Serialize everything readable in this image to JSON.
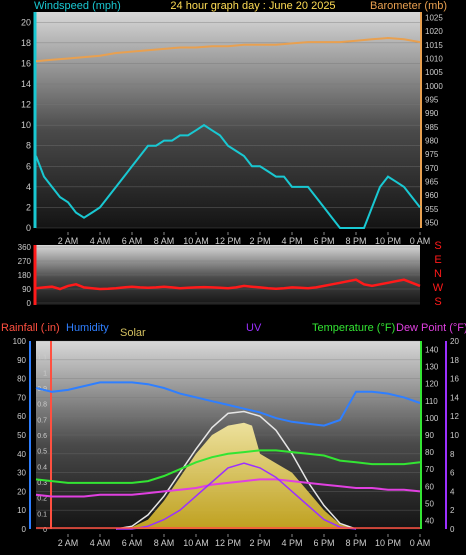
{
  "header": {
    "left_label": "Windspeed (mph)",
    "title": "24 hour graph day : June 20 2025",
    "right_label": "Barometer (mb)"
  },
  "colors": {
    "windspeed": "#19c8d2",
    "barometer": "#e8a050",
    "wind_direction": "#ff1a1a",
    "rainfall": "#ff5040",
    "humidity": "#2f7fff",
    "solar": "#e8d870",
    "uv": "#9b30ff",
    "temperature": "#33e533",
    "dew_point": "#e040e0",
    "tick_text": "#cccccc"
  },
  "chart_data": [
    {
      "type": "line",
      "title": "24 hour graph day : June 20 2025",
      "x_ticks": [
        "2 AM",
        "4 AM",
        "6 AM",
        "8 AM",
        "10 AM",
        "12 PM",
        "2 PM",
        "4 PM",
        "6 PM",
        "8 PM",
        "10 PM",
        "0 AM"
      ],
      "left_axis": {
        "label": "Windspeed (mph)",
        "ticks": [
          0,
          2,
          4,
          6,
          8,
          10,
          12,
          14,
          16,
          18,
          20
        ],
        "range": [
          0,
          21
        ]
      },
      "right_axis": {
        "label": "Barometer (mb)",
        "ticks": [
          950,
          955,
          960,
          965,
          970,
          975,
          980,
          985,
          990,
          995,
          1000,
          1005,
          1010,
          1015,
          1020,
          1025
        ],
        "range": [
          948,
          1027
        ]
      },
      "series": [
        {
          "name": "Windspeed (mph)",
          "axis": "left",
          "x": [
            0,
            0.5,
            1,
            1.5,
            2,
            2.5,
            3,
            3.5,
            4,
            4.5,
            5,
            5.5,
            6,
            6.5,
            7,
            7.5,
            8,
            8.5,
            9,
            9.5,
            10,
            10.5,
            11,
            11.5,
            12,
            12.5,
            13,
            13.5,
            14,
            14.5,
            15,
            15.5,
            16,
            16.5,
            17,
            17.5,
            18,
            18.5,
            19,
            19.5,
            20,
            20.5,
            21,
            21.5,
            22,
            22.5,
            23,
            23.5,
            24
          ],
          "values": [
            7,
            5,
            4,
            3,
            2.5,
            1.5,
            1,
            1.5,
            2,
            3,
            4,
            5,
            6,
            7,
            8,
            8,
            8.5,
            8.5,
            9,
            9,
            9.5,
            10,
            9.5,
            9,
            8,
            7.5,
            7,
            6,
            6,
            5.5,
            5,
            5,
            4,
            4,
            4,
            3,
            2,
            1,
            0,
            0,
            0,
            0,
            2,
            4,
            5,
            4.5,
            4,
            3,
            2
          ]
        },
        {
          "name": "Barometer (mb)",
          "axis": "right",
          "x": [
            0,
            1,
            2,
            3,
            4,
            5,
            6,
            7,
            8,
            9,
            10,
            11,
            12,
            13,
            14,
            15,
            16,
            17,
            18,
            19,
            20,
            21,
            22,
            23,
            24
          ],
          "values": [
            1009,
            1009.5,
            1010,
            1010.5,
            1011,
            1012,
            1012.5,
            1013,
            1013.5,
            1014,
            1014,
            1014.5,
            1014.5,
            1015,
            1015,
            1015,
            1015.5,
            1016,
            1016,
            1016,
            1016.5,
            1017,
            1017.5,
            1017,
            1016
          ]
        }
      ]
    },
    {
      "type": "scatter",
      "x_ticks": [
        "2 AM",
        "4 AM",
        "6 AM",
        "8 AM",
        "10 AM",
        "12 PM",
        "2 PM",
        "4 PM",
        "6 PM",
        "8 PM",
        "10 PM",
        "0 AM"
      ],
      "left_axis": {
        "ticks": [
          0,
          90,
          180,
          270,
          360
        ],
        "range": [
          0,
          360
        ]
      },
      "right_labels": [
        "S",
        "E",
        "N",
        "W",
        "S"
      ],
      "series": [
        {
          "name": "Wind direction",
          "x": [
            0,
            0.5,
            1,
            1.5,
            2,
            2.5,
            3,
            3.5,
            4,
            4.5,
            5,
            5.5,
            6,
            6.5,
            7,
            7.5,
            8,
            8.5,
            9,
            9.5,
            10,
            10.5,
            11,
            11.5,
            12,
            12.5,
            13,
            13.5,
            14,
            14.5,
            15,
            15.5,
            16,
            16.5,
            17,
            17.5,
            18,
            18.5,
            19,
            19.5,
            20,
            20.5,
            21,
            21.5,
            22,
            22.5,
            23,
            23.5,
            24
          ],
          "values": [
            95,
            100,
            105,
            90,
            110,
            120,
            100,
            95,
            90,
            92,
            95,
            100,
            105,
            100,
            98,
            100,
            105,
            100,
            95,
            98,
            100,
            102,
            100,
            98,
            95,
            100,
            110,
            105,
            100,
            95,
            92,
            95,
            100,
            98,
            95,
            100,
            110,
            120,
            130,
            140,
            150,
            120,
            110,
            120,
            130,
            140,
            150,
            130,
            110
          ]
        }
      ]
    },
    {
      "type": "line",
      "x_ticks": [
        "2 AM",
        "4 AM",
        "6 AM",
        "8 AM",
        "10 AM",
        "12 PM",
        "2 PM",
        "4 PM",
        "6 PM",
        "8 PM",
        "10 PM",
        "0 AM"
      ],
      "legend": [
        "Rainfall (.in)",
        "Humidity",
        "Solar",
        "UV",
        "Temperature (°F)",
        "Dew Point (°F)"
      ],
      "axes": {
        "humidity": {
          "ticks": [
            0,
            10,
            20,
            30,
            40,
            50,
            60,
            70,
            80,
            90,
            100
          ],
          "range": [
            0,
            100
          ]
        },
        "rainfall": {
          "ticks": [
            0,
            0.1,
            0.2,
            0.3,
            0.4,
            0.5,
            0.6,
            0.7,
            0.8,
            0.9,
            1,
            1.1
          ],
          "range": [
            0,
            1.2
          ]
        },
        "temperature": {
          "ticks": [
            40,
            50,
            60,
            70,
            80,
            90,
            100,
            110,
            120,
            130,
            140
          ],
          "range": [
            35,
            145
          ]
        },
        "uv": {
          "ticks": [
            0,
            2,
            4,
            6,
            8,
            10,
            12,
            14,
            16,
            18,
            20
          ],
          "range": [
            0,
            20
          ]
        }
      },
      "series": [
        {
          "name": "Humidity",
          "axis": "humidity",
          "x": [
            0,
            1,
            2,
            3,
            4,
            5,
            6,
            7,
            8,
            9,
            10,
            11,
            12,
            13,
            14,
            15,
            16,
            17,
            18,
            19,
            20,
            21,
            22,
            23,
            24
          ],
          "values": [
            75,
            73,
            74,
            76,
            78,
            78,
            78,
            77,
            75,
            72,
            70,
            68,
            66,
            64,
            62,
            59,
            57,
            56,
            55,
            58,
            73,
            73,
            72,
            70,
            67
          ]
        },
        {
          "name": "Temperature (°F)",
          "axis": "temperature",
          "x": [
            0,
            1,
            2,
            3,
            4,
            5,
            6,
            7,
            8,
            9,
            10,
            11,
            12,
            13,
            14,
            15,
            16,
            17,
            18,
            19,
            20,
            21,
            22,
            23,
            24
          ],
          "values": [
            64,
            63,
            62,
            62,
            62,
            62,
            62,
            63,
            66,
            70,
            74,
            77,
            79,
            80,
            81,
            81,
            80,
            79,
            78,
            75,
            74,
            73,
            73,
            73,
            74
          ]
        },
        {
          "name": "Dew Point (°F)",
          "axis": "temperature",
          "x": [
            0,
            1,
            2,
            3,
            4,
            5,
            6,
            7,
            8,
            9,
            10,
            11,
            12,
            13,
            14,
            15,
            16,
            17,
            18,
            19,
            20,
            21,
            22,
            23,
            24
          ],
          "values": [
            55,
            54,
            54,
            54,
            55,
            55,
            55,
            56,
            57,
            58,
            59,
            61,
            62,
            63,
            64,
            64,
            63,
            62,
            61,
            60,
            59,
            59,
            58,
            58,
            57
          ]
        },
        {
          "name": "Solar",
          "axis": "uv",
          "fill": true,
          "x": [
            5,
            6,
            7,
            8,
            9,
            10,
            11,
            12,
            13,
            13.5,
            14,
            15,
            16,
            17,
            18,
            19,
            20
          ],
          "values": [
            0,
            0.2,
            1,
            3,
            5.5,
            8,
            10,
            11,
            11.3,
            11,
            8,
            7,
            6,
            4,
            2,
            0.5,
            0
          ]
        },
        {
          "name": "Solar (clear sky)",
          "axis": "uv",
          "x": [
            5,
            6,
            7,
            8,
            9,
            10,
            11,
            12,
            13,
            14,
            15,
            16,
            17,
            18,
            19,
            20
          ],
          "values": [
            0,
            0.3,
            1.5,
            3.5,
            6,
            8.5,
            10.8,
            12.3,
            12.5,
            12,
            10.5,
            8,
            5,
            2.5,
            0.6,
            0
          ]
        },
        {
          "name": "UV",
          "axis": "uv",
          "x": [
            5,
            6,
            7,
            8,
            9,
            10,
            11,
            12,
            13,
            14,
            15,
            16,
            17,
            18,
            19,
            20
          ],
          "values": [
            0,
            0,
            0.3,
            1,
            2,
            3.5,
            5,
            6.5,
            7,
            6.5,
            5.5,
            4,
            2.5,
            1,
            0.2,
            0
          ]
        }
      ]
    }
  ]
}
